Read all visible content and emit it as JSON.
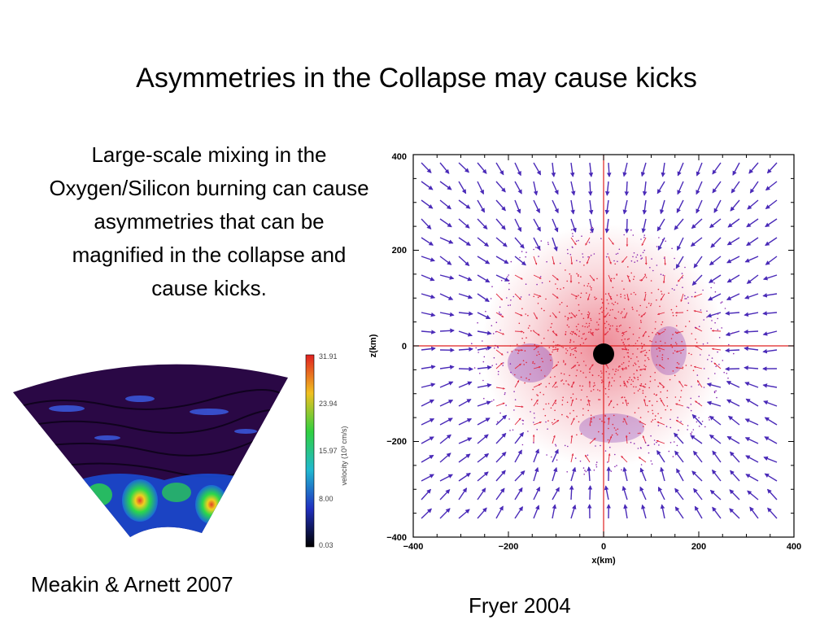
{
  "slide": {
    "title": "Asymmetries in the Collapse may cause kicks",
    "body": "Large-scale mixing in the Oxygen/Silicon burning can cause asymmetries that can be magnified in the collapse and cause kicks.",
    "caption_left": "Meakin & Arnett 2007",
    "caption_right": "Fryer 2004"
  },
  "figure_left": {
    "colorbar_ticks": [
      "31.91",
      "23.94",
      "15.97",
      "8.00",
      "0.03"
    ],
    "colorbar_label": "velocity (10³ cm/s)",
    "colors": {
      "background": "#2a0845",
      "low": "#000000",
      "mid": "#3a0f7a",
      "high_green": "#2bd84a",
      "hot": "#e0402a"
    }
  },
  "figure_right": {
    "ylabel": "z(km)",
    "xlabel": "x(km)",
    "x_ticks": [
      "−400",
      "−200",
      "0",
      "200",
      "400"
    ],
    "y_ticks": [
      "400",
      "200",
      "0",
      "−200",
      "−400"
    ],
    "xlim": [
      -400,
      400
    ],
    "ylim": [
      -400,
      400
    ],
    "colors": {
      "outer_arrows": "#4a2ab8",
      "inner_arrows": "#e02a40",
      "axis_lines": "#e02020",
      "core": "#000000"
    }
  }
}
